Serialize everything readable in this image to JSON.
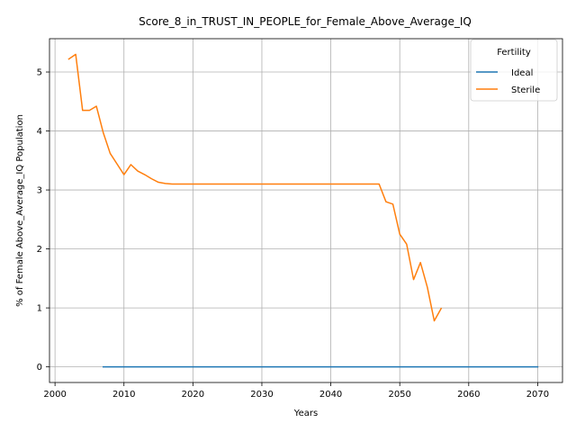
{
  "chart_data": {
    "type": "line",
    "title": "Score_8_in_TRUST_IN_PEOPLE_for_Female_Above_Average_IQ",
    "xlabel": "Years",
    "ylabel": "% of Female Above_Average_IQ Population",
    "xlim": [
      1999.2,
      2073.6
    ],
    "ylim": [
      -0.265,
      5.565
    ],
    "xticks": [
      2000,
      2010,
      2020,
      2030,
      2040,
      2050,
      2060,
      2070
    ],
    "yticks": [
      0,
      1,
      2,
      3,
      4,
      5
    ],
    "grid": true,
    "legend": {
      "title": "Fertility",
      "placement": "top-right"
    },
    "series": [
      {
        "name": "Ideal",
        "color": "#1f77b4",
        "x": [
          2007,
          2070
        ],
        "y": [
          0,
          0
        ]
      },
      {
        "name": "Sterile",
        "color": "#ff7f0e",
        "x": [
          2002,
          2003,
          2004,
          2005,
          2006,
          2007,
          2008,
          2009,
          2010,
          2011,
          2012,
          2013,
          2014,
          2015,
          2016,
          2017,
          2020,
          2030,
          2040,
          2045,
          2047,
          2048,
          2049,
          2050,
          2051,
          2052,
          2053,
          2054,
          2055,
          2056
        ],
        "y": [
          5.22,
          5.3,
          4.35,
          4.35,
          4.42,
          3.97,
          3.62,
          3.44,
          3.26,
          3.43,
          3.32,
          3.26,
          3.19,
          3.13,
          3.11,
          3.1,
          3.1,
          3.1,
          3.1,
          3.1,
          3.1,
          2.8,
          2.76,
          2.25,
          2.08,
          1.48,
          1.77,
          1.35,
          0.78,
          0.99
        ]
      }
    ]
  }
}
